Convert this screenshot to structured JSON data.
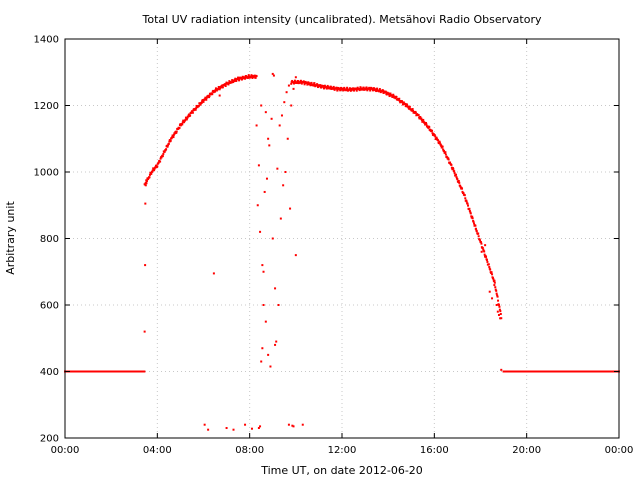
{
  "chart_data": {
    "type": "scatter",
    "title": "Total UV radiation intensity (uncalibrated). Metsähovi Radio Observatory",
    "xlabel": "Time UT, on date 2012-06-20",
    "ylabel": "Arbitrary unit",
    "x_unit": "hours UT",
    "xlim": [
      0,
      24
    ],
    "ylim": [
      200,
      1400
    ],
    "x_ticks": [
      0,
      4,
      8,
      12,
      16,
      20,
      24
    ],
    "x_tick_labels": [
      "00:00",
      "04:00",
      "08:00",
      "12:00",
      "16:00",
      "20:00",
      "00:00"
    ],
    "y_ticks": [
      200,
      400,
      600,
      800,
      1000,
      1200,
      1400
    ],
    "y_tick_labels": [
      "200",
      "400",
      "600",
      "800",
      "1000",
      "1200",
      "1400"
    ],
    "grid": true,
    "legend": "none",
    "marker_color": "#ff0000",
    "series": [
      {
        "name": "",
        "baseline_segments": [
          {
            "x": [
              0,
              3.45
            ],
            "y": 400
          },
          {
            "x": [
              19.0,
              24
            ],
            "y": 400
          }
        ],
        "main_curve": {
          "x": [
            3.45,
            3.6,
            3.8,
            4.0,
            4.3,
            4.6,
            5.0,
            5.5,
            6.0,
            6.5,
            7.0,
            7.5,
            8.0,
            8.3,
            9.8,
            10.3,
            10.8,
            11.3,
            11.8,
            12.3,
            12.8,
            13.3,
            13.8,
            14.3,
            14.8,
            15.3,
            15.8,
            16.3,
            16.8,
            17.3,
            17.8,
            18.2,
            18.6,
            18.9
          ],
          "y": [
            960,
            980,
            1005,
            1020,
            1060,
            1100,
            1140,
            1180,
            1215,
            1245,
            1265,
            1280,
            1287,
            1287,
            1270,
            1270,
            1262,
            1255,
            1250,
            1248,
            1250,
            1250,
            1242,
            1225,
            1200,
            1170,
            1130,
            1080,
            1010,
            930,
            830,
            750,
            670,
            565
          ]
        },
        "scatter_points": {
          "x": [
            3.45,
            3.47,
            3.48,
            3.5,
            3.52,
            6.05,
            6.2,
            6.45,
            6.7,
            7.0,
            7.3,
            7.8,
            8.1,
            8.3,
            8.5,
            8.4,
            8.35,
            8.45,
            8.55,
            8.6,
            8.7,
            8.8,
            8.9,
            8.65,
            8.75,
            8.85,
            8.95,
            9.0,
            9.05,
            9.1,
            8.5,
            8.55,
            8.6,
            9.2,
            9.3,
            9.4,
            9.5,
            9.6,
            9.7,
            9.8,
            9.9,
            10.0,
            9.35,
            9.45,
            9.55,
            9.65,
            9.15,
            9.25,
            9.75,
            8.7,
            8.8,
            9.0,
            9.1,
            8.4,
            8.45,
            9.7,
            9.85,
            9.9,
            10.3,
            10.0,
            18.05,
            18.2,
            18.4,
            18.5,
            18.6,
            18.7,
            18.75,
            18.8,
            18.85,
            18.9
          ],
          "y": [
            520,
            720,
            905,
            960,
            975,
            240,
            225,
            695,
            1230,
            230,
            225,
            240,
            228,
            1140,
            1200,
            1020,
            900,
            820,
            720,
            600,
            550,
            450,
            415,
            940,
            980,
            1080,
            1160,
            1295,
            1290,
            480,
            430,
            470,
            700,
            1010,
            1140,
            1170,
            1210,
            1240,
            1260,
            1200,
            1250,
            750,
            860,
            960,
            1000,
            1100,
            490,
            600,
            890,
            1180,
            1100,
            800,
            650,
            230,
            235,
            240,
            237,
            235,
            240,
            1285,
            760,
            780,
            640,
            620,
            660,
            600,
            580,
            570,
            560,
            405
          ]
        }
      }
    ]
  }
}
